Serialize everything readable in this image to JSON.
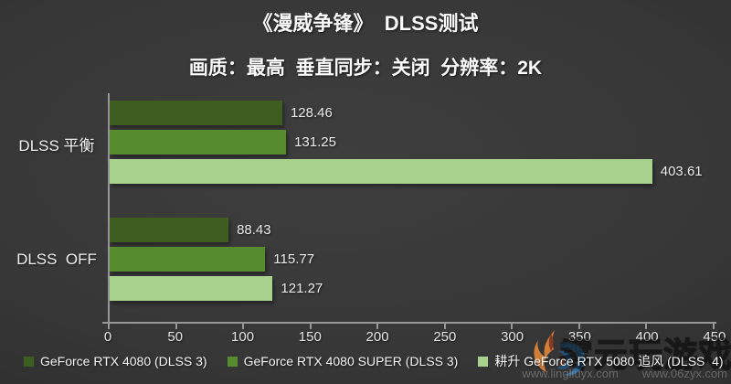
{
  "title": "《漫威争锋》  DLSS测试",
  "subtitle": "画质：最高  垂直同步：关闭  分辨率：2K",
  "chart_data": {
    "type": "bar",
    "orientation": "horizontal",
    "title": "《漫威争锋》 DLSS测试",
    "subtitle": "画质：最高 垂直同步：关闭 分辨率：2K",
    "categories": [
      "DLSS 平衡",
      "DLSS  OFF"
    ],
    "series": [
      {
        "name": "GeForce RTX 4080 (DLSS 3)",
        "color": "#3e5e20",
        "values": [
          128.46,
          88.43
        ]
      },
      {
        "name": "GeForce RTX 4080 SUPER (DLSS 3)",
        "color": "#568c2e",
        "values": [
          131.25,
          115.77
        ]
      },
      {
        "name": "耕升 GeForce RTX 5080 追风 (DLSS  4)",
        "color": "#a9d18e",
        "values": [
          403.61,
          121.27
        ]
      }
    ],
    "xlim": [
      0,
      450
    ],
    "x_ticks": [
      0,
      50,
      100,
      150,
      200,
      250,
      300,
      350,
      400,
      450
    ],
    "legend_position": "bottom",
    "grid": false,
    "background": "#333333",
    "axis_color": "#979797"
  },
  "watermark": {
    "text": "零元玩游戏",
    "url1": "www.lingliuyx.com",
    "url2": "www.06zyx.com"
  }
}
